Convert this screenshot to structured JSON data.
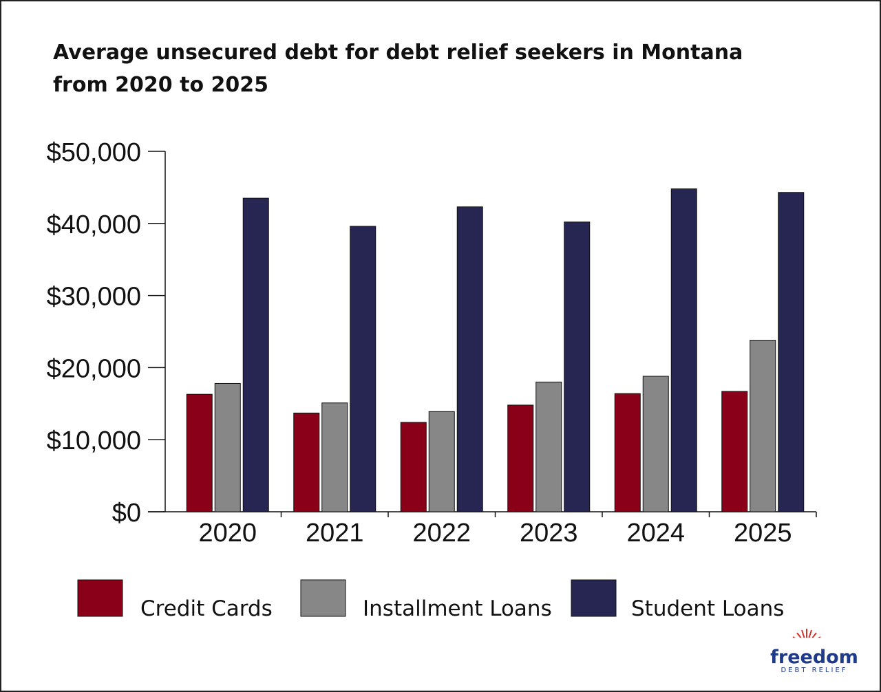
{
  "chart_data": {
    "type": "bar",
    "title": [
      "Average unsecured debt for debt relief seekers in Montana",
      "from 2020 to 2025"
    ],
    "categories": [
      "2020",
      "2021",
      "2022",
      "2023",
      "2024",
      "2025"
    ],
    "series": [
      {
        "name": "Credit Cards",
        "color": "#8a0018",
        "values": [
          16300,
          13700,
          12400,
          14800,
          16400,
          16700
        ]
      },
      {
        "name": "Installment Loans",
        "color": "#878787",
        "values": [
          17800,
          15100,
          13900,
          18000,
          18800,
          23800
        ]
      },
      {
        "name": "Student Loans",
        "color": "#272652",
        "values": [
          43500,
          39600,
          42300,
          40200,
          44800,
          44300
        ]
      }
    ],
    "ylim": [
      0,
      50000
    ],
    "yticks": [
      {
        "value": 0,
        "label": "$0"
      },
      {
        "value": 10000,
        "label": "$10,000"
      },
      {
        "value": 20000,
        "label": "$20,000"
      },
      {
        "value": 30000,
        "label": "$30,000"
      },
      {
        "value": 40000,
        "label": "$40,000"
      },
      {
        "value": 50000,
        "label": "$50,000"
      }
    ],
    "grid": false
  },
  "logo": {
    "name": "freedom",
    "tagline": "DEBT RELIEF"
  }
}
